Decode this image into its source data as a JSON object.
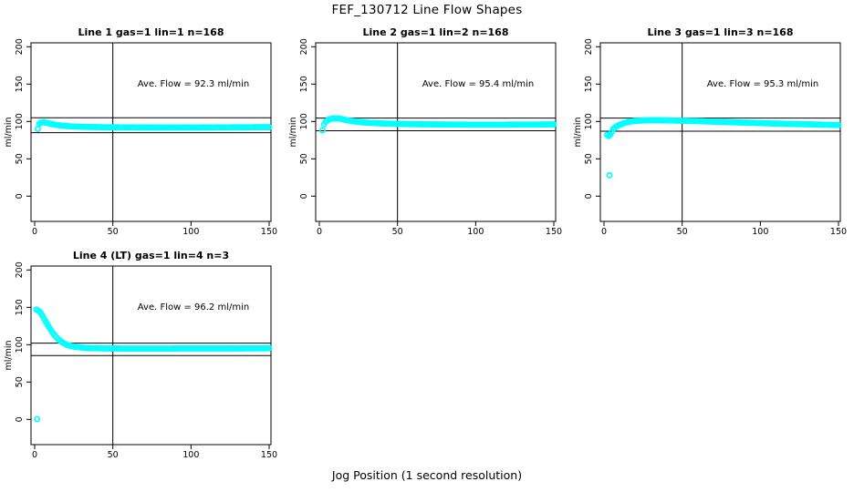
{
  "title": "FEF_130712  Line Flow Shapes",
  "xlabel": "Jog Position (1 second resolution)",
  "chart_data": {
    "type": "scatter",
    "title": "FEF_130712  Line Flow Shapes",
    "xlabel": "Jog Position (1 second resolution)",
    "ylabel": "ml/min",
    "xlim": [
      0,
      150
    ],
    "ylim": [
      0,
      200
    ],
    "x_ticks": [
      0,
      50,
      100,
      150
    ],
    "y_ticks": [
      0,
      50,
      100,
      150,
      200
    ],
    "grid": false,
    "point_color": "#00FFFF",
    "axis_color": "#000000",
    "plots": [
      {
        "title": "Line 1 gas=1 lin=1 n=168",
        "n": 168,
        "ave_flow": 92.3,
        "annotation": "Ave. Flow =  92.3  ml/min",
        "hlines": [
          105,
          85
        ],
        "vline": 50,
        "series_keypoints": [
          [
            2,
            90
          ],
          [
            3,
            97
          ],
          [
            4,
            98.5
          ],
          [
            6,
            99
          ],
          [
            8,
            98
          ],
          [
            11,
            96.5
          ],
          [
            14,
            95.3
          ],
          [
            18,
            94.3
          ],
          [
            24,
            93.3
          ],
          [
            32,
            92.7
          ],
          [
            45,
            92.2
          ],
          [
            65,
            92
          ],
          [
            90,
            91.9
          ],
          [
            115,
            92
          ],
          [
            135,
            92.2
          ],
          [
            150,
            92.4
          ]
        ],
        "extra_points": []
      },
      {
        "title": "Line 2 gas=1 lin=2 n=168",
        "n": 168,
        "ave_flow": 95.4,
        "annotation": "Ave. Flow =  95.4  ml/min",
        "hlines": [
          104.5,
          87.5
        ],
        "vline": 50,
        "series_keypoints": [
          [
            2,
            88
          ],
          [
            3,
            96
          ],
          [
            4,
            99.5
          ],
          [
            6,
            102.5
          ],
          [
            8,
            103.8
          ],
          [
            11,
            104.2
          ],
          [
            14,
            103.3
          ],
          [
            18,
            101.5
          ],
          [
            22,
            100.2
          ],
          [
            27,
            99
          ],
          [
            33,
            98
          ],
          [
            42,
            97.2
          ],
          [
            55,
            96.5
          ],
          [
            75,
            96
          ],
          [
            100,
            95.7
          ],
          [
            125,
            95.8
          ],
          [
            150,
            96
          ]
        ],
        "extra_points": []
      },
      {
        "title": "Line 3 gas=1 lin=3 n=168",
        "n": 168,
        "ave_flow": 95.3,
        "annotation": "Ave. Flow =  95.3  ml/min",
        "hlines": [
          104.5,
          87
        ],
        "vline": 50,
        "series_keypoints": [
          [
            2,
            82
          ],
          [
            3,
            80.5
          ],
          [
            4,
            82.5
          ],
          [
            5,
            86
          ],
          [
            6,
            90
          ],
          [
            8,
            93.5
          ],
          [
            10,
            95.5
          ],
          [
            13,
            98
          ],
          [
            16,
            99.5
          ],
          [
            20,
            100.7
          ],
          [
            26,
            101.4
          ],
          [
            34,
            101.6
          ],
          [
            45,
            101.2
          ],
          [
            60,
            100.4
          ],
          [
            75,
            99.4
          ],
          [
            90,
            98.4
          ],
          [
            110,
            97.2
          ],
          [
            130,
            96.2
          ],
          [
            150,
            95.2
          ]
        ],
        "extra_points": [
          [
            3.5,
            28
          ]
        ]
      },
      {
        "title": "Line 4 (LT) gas=1 lin=4 n=3",
        "n": 3,
        "ave_flow": 96.2,
        "annotation": "Ave. Flow =  96.2  ml/min",
        "hlines": [
          102,
          85.5
        ],
        "vline": 50,
        "series_keypoints": [
          [
            1,
            147
          ],
          [
            2,
            146
          ],
          [
            3,
            144.5
          ],
          [
            4,
            142
          ],
          [
            5,
            138.5
          ],
          [
            7,
            131
          ],
          [
            9,
            124
          ],
          [
            11,
            117.5
          ],
          [
            13,
            112
          ],
          [
            15,
            107.5
          ],
          [
            17,
            104
          ],
          [
            19,
            101.5
          ],
          [
            21,
            99.5
          ],
          [
            24,
            97.8
          ],
          [
            27,
            96.8
          ],
          [
            31,
            96
          ],
          [
            36,
            95.4
          ],
          [
            45,
            95
          ],
          [
            60,
            94.8
          ],
          [
            80,
            94.8
          ],
          [
            105,
            95
          ],
          [
            130,
            95
          ],
          [
            150,
            95.2
          ]
        ],
        "extra_points": [
          [
            1.5,
            0.5
          ]
        ]
      }
    ]
  }
}
